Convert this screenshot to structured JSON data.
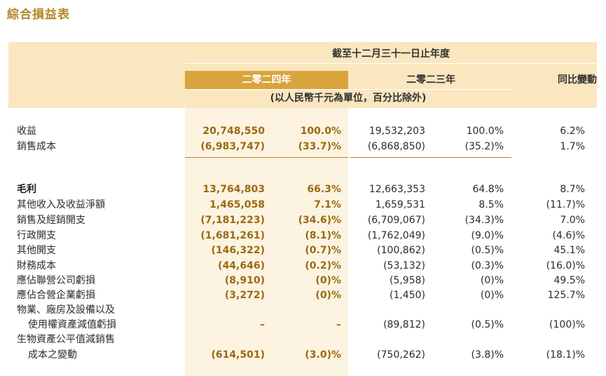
{
  "title": "綜合損益表",
  "header": {
    "period": "截至十二月三十一日止年度",
    "year_2024": "二零二四年",
    "year_2023": "二零二三年",
    "yoy": "同比變動",
    "unit_note": "(以人民幣千元為單位，百分比除外)"
  },
  "rows": [
    {
      "label": "收益",
      "v2024": "20,748,550",
      "p2024": "100.0%",
      "v2023": "19,532,203",
      "p2023": "100.0%",
      "yoy": "6.2%"
    },
    {
      "label": "銷售成本",
      "v2024": "(6,983,747)",
      "p2024": "(33.7)%",
      "v2023": "(6,868,850)",
      "p2023": "(35.2)%",
      "yoy": "1.7%"
    },
    {
      "label": "毛利",
      "v2024": "13,764,803",
      "p2024": "66.3%",
      "v2023": "12,663,353",
      "p2023": "64.8%",
      "yoy": "8.7%"
    },
    {
      "label": "其他收入及收益淨額",
      "v2024": "1,465,058",
      "p2024": "7.1%",
      "v2023": "1,659,531",
      "p2023": "8.5%",
      "yoy": "(11.7)%"
    },
    {
      "label": "銷售及經銷開支",
      "v2024": "(7,181,223)",
      "p2024": "(34.6)%",
      "v2023": "(6,709,067)",
      "p2023": "(34.3)%",
      "yoy": "7.0%"
    },
    {
      "label": "行政開支",
      "v2024": "(1,681,261)",
      "p2024": "(8.1)%",
      "v2023": "(1,762,049)",
      "p2023": "(9.0)%",
      "yoy": "(4.6)%"
    },
    {
      "label": "其他開支",
      "v2024": "(146,322)",
      "p2024": "(0.7)%",
      "v2023": "(100,862)",
      "p2023": "(0.5)%",
      "yoy": "45.1%"
    },
    {
      "label": "財務成本",
      "v2024": "(44,646)",
      "p2024": "(0.2)%",
      "v2023": "(53,132)",
      "p2023": "(0.3)%",
      "yoy": "(16.0)%"
    },
    {
      "label": "應佔聯營公司虧損",
      "v2024": "(8,910)",
      "p2024": "(0)%",
      "v2023": "(5,958)",
      "p2023": "(0)%",
      "yoy": "49.5%"
    },
    {
      "label": "應佔合營企業虧損",
      "v2024": "(3,272)",
      "p2024": "(0)%",
      "v2023": "(1,450)",
      "p2023": "(0)%",
      "yoy": "125.7%"
    },
    {
      "label": "物業、廠房及設備以及"
    },
    {
      "label": "使用權資產減值虧損",
      "v2024": "–",
      "p2024": "–",
      "v2023": "(89,812)",
      "p2023": "(0.5)%",
      "yoy": "(100)%"
    },
    {
      "label": "生物資產公平值減銷售"
    },
    {
      "label": "成本之變動",
      "v2024": "(614,501)",
      "p2024": "(3.0)%",
      "v2023": "(750,262)",
      "p2023": "(3.8)%",
      "yoy": "(18.1)%"
    }
  ]
}
